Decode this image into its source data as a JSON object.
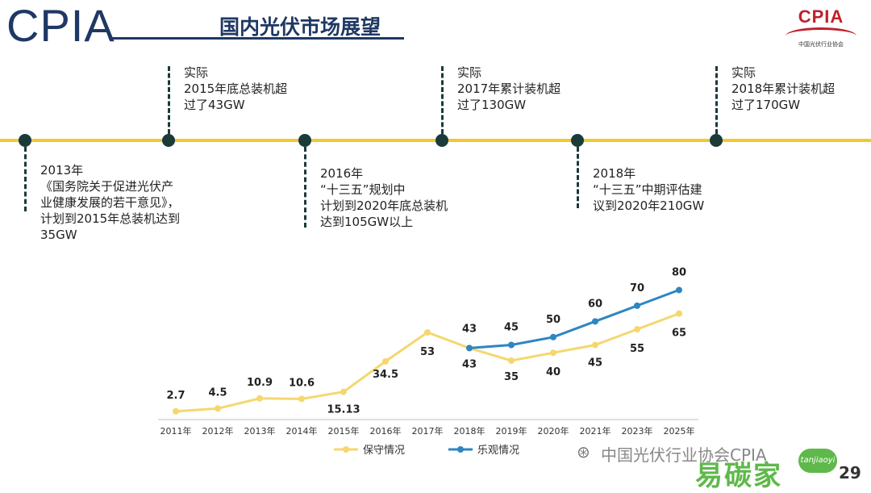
{
  "header": {
    "brand": "CPIA",
    "title": "国内光伏市场展望",
    "logo_text": "CPIA",
    "logo_sub": "中国光伏行业协会"
  },
  "timeline": {
    "events": [
      {
        "lines": [
          "2013年",
          "《国务院关于促进光伏产",
          "业健康发展的若干意见》，",
          "计划到2015年总装机达到",
          "35GW"
        ]
      },
      {
        "lines": [
          "实际",
          "2015年底总装机超",
          "过了43GW"
        ]
      },
      {
        "lines": [
          "2016年",
          "“十三五”规划中",
          "计划到2020年底总装机",
          "达到105GW以上"
        ]
      },
      {
        "lines": [
          "实际",
          "2017年累计装机超",
          "过了130GW"
        ]
      },
      {
        "lines": [
          "2018年",
          "“十三五”中期评估建",
          "议到2020年210GW"
        ]
      },
      {
        "lines": [
          "实际",
          "2018年累计装机超",
          "过了170GW"
        ]
      }
    ]
  },
  "chart_data": {
    "type": "line",
    "categories": [
      "2011年",
      "2012年",
      "2013年",
      "2014年",
      "2015年",
      "2016年",
      "2017年",
      "2018年",
      "2019年",
      "2020年",
      "2021年",
      "2023年",
      "2025年"
    ],
    "series": [
      {
        "name": "保守情况",
        "color": "#f5d76e",
        "values": [
          2.7,
          4.5,
          10.9,
          10.6,
          15.13,
          34.5,
          53,
          43,
          35,
          40,
          45,
          55,
          65
        ]
      },
      {
        "name": "乐观情况",
        "color": "#2e86c1",
        "values": [
          null,
          null,
          null,
          null,
          null,
          null,
          null,
          43,
          45,
          50,
          60,
          70,
          80
        ]
      }
    ],
    "title": "",
    "xlabel": "",
    "ylabel": "",
    "ylim": [
      0,
      90
    ],
    "legend": "bottom"
  },
  "watermark": {
    "text": "中国光伏行业协会CPIA",
    "green_text": "易碳家",
    "badge": "tanjiaoyi"
  },
  "page_number": "29"
}
